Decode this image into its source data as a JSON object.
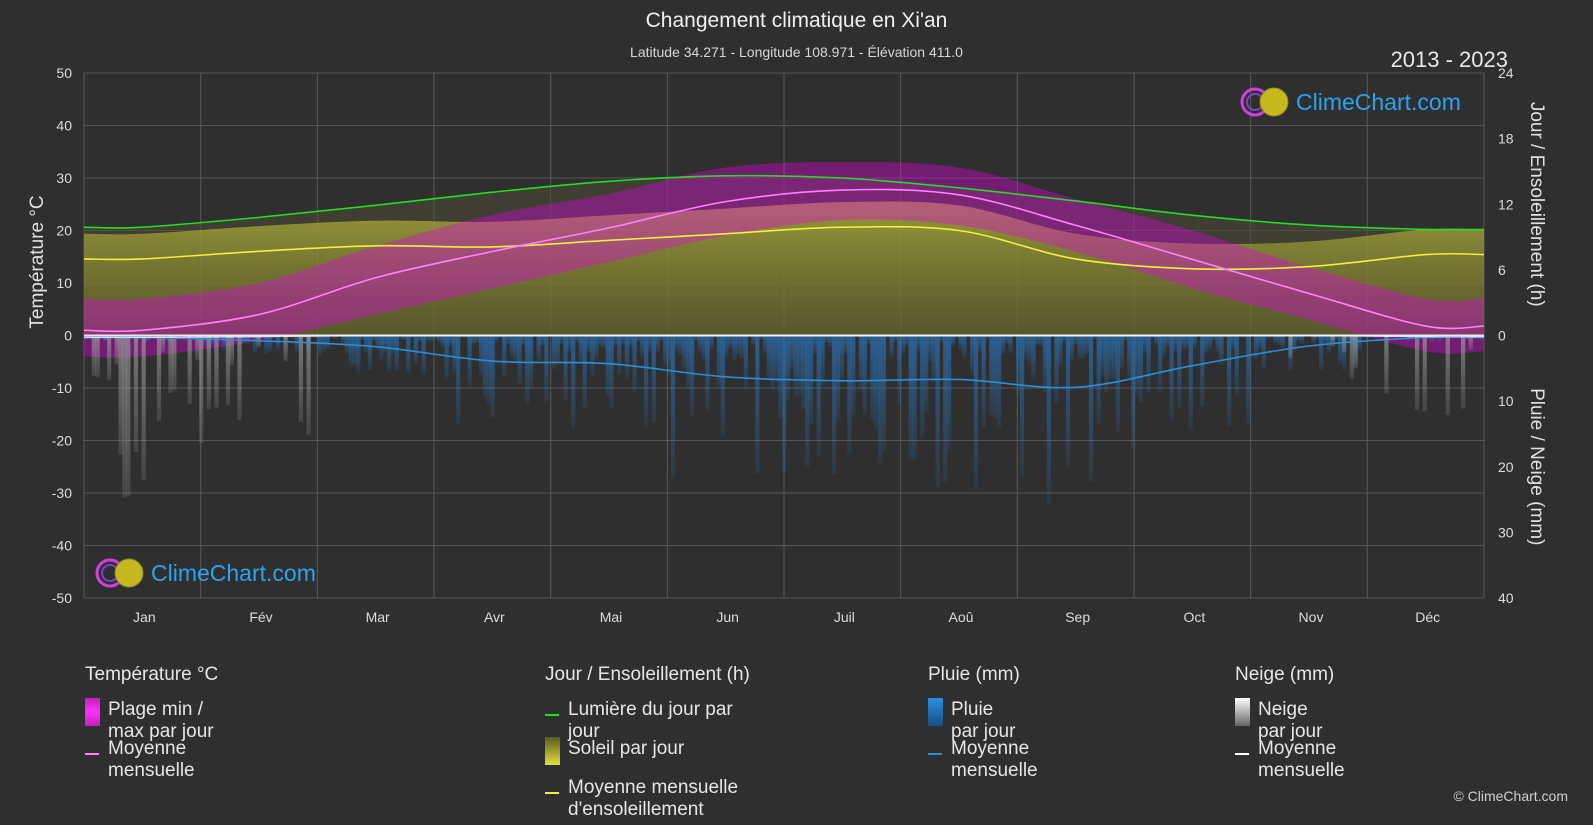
{
  "header": {
    "title": "Changement climatique en Xi'an",
    "subtitle": "Latitude 34.271 - Longitude 108.971 - Élévation 411.0",
    "years": "2013 - 2023"
  },
  "brand": {
    "text": "ClimeChart.com",
    "copyright": "© ClimeChart.com"
  },
  "colors": {
    "background": "#2f2f2f",
    "temp_range": "#e000e0",
    "temp_mean": "#ff80ff",
    "daylight": "#22dd22",
    "sunshine": "#c8c832",
    "sunshine_mean": "#f0f040",
    "rain": "#2a8fd8",
    "rain_mean": "#2a8fd8",
    "snow": "#bbbbbb",
    "snow_mean": "#ffffff",
    "brand": "#2aa3f0"
  },
  "legend": {
    "temperature": {
      "title": "Température °C",
      "range_label": "Plage min / max par jour",
      "mean_label": "Moyenne mensuelle"
    },
    "sun": {
      "title": "Jour / Ensoleillement (h)",
      "daylight_label": "Lumière du jour par jour",
      "sunshine_label": "Soleil par jour",
      "sunshine_mean_label": "Moyenne mensuelle d'ensoleillement"
    },
    "rain": {
      "title": "Pluie (mm)",
      "rain_label": "Pluie par jour",
      "mean_label": "Moyenne mensuelle"
    },
    "snow": {
      "title": "Neige (mm)",
      "snow_label": "Neige par jour",
      "mean_label": "Moyenne mensuelle"
    }
  },
  "chart_data": {
    "type": "line",
    "categories": [
      "Jan",
      "Fév",
      "Mar",
      "Avr",
      "Mai",
      "Jun",
      "Juil",
      "Aoû",
      "Sep",
      "Oct",
      "Nov",
      "Déc"
    ],
    "y_left": {
      "label": "Température °C",
      "ticks": [
        50,
        40,
        30,
        20,
        10,
        0,
        -10,
        -20,
        -30,
        -40,
        -50
      ],
      "range": [
        -50,
        50
      ]
    },
    "y_right_top": {
      "label": "Jour / Ensoleillement (h)",
      "ticks": [
        24,
        18,
        12,
        6,
        0
      ],
      "range": [
        0,
        24
      ]
    },
    "y_right_bottom": {
      "label": "Pluie / Neige (mm)",
      "ticks": [
        0,
        10,
        20,
        30,
        40
      ],
      "range": [
        0,
        40
      ]
    },
    "series": [
      {
        "name": "Moyenne mensuelle",
        "kind": "temperature_mean",
        "values": [
          1.0,
          4.0,
          11.0,
          16.0,
          20.5,
          25.5,
          27.7,
          26.8,
          21.0,
          14.5,
          8.0,
          1.8
        ]
      },
      {
        "name": "Lumière du jour par jour",
        "kind": "daylight_hours",
        "values": [
          9.9,
          10.8,
          11.9,
          13.1,
          14.1,
          14.6,
          14.4,
          13.5,
          12.3,
          11.0,
          10.1,
          9.7
        ]
      },
      {
        "name": "Moyenne mensuelle d'ensoleillement",
        "kind": "sunshine_hours",
        "values": [
          7.0,
          7.7,
          8.2,
          8.1,
          8.7,
          9.3,
          9.9,
          9.6,
          7.0,
          6.1,
          6.3,
          7.4
        ]
      },
      {
        "name": "Moyenne mensuelle",
        "kind": "rain_mean_mm",
        "values": [
          0.3,
          0.8,
          1.7,
          3.9,
          4.3,
          6.3,
          6.9,
          6.7,
          7.9,
          4.6,
          1.6,
          0.3
        ]
      },
      {
        "name": "Moyenne mensuelle",
        "kind": "snow_mean_mm",
        "values": [
          0.3,
          0.2,
          0.0,
          0.0,
          0.0,
          0.0,
          0.0,
          0.0,
          0.0,
          0.0,
          0.0,
          0.2
        ]
      }
    ],
    "temp_daily_range_approx": {
      "min": [
        -4,
        -1,
        4,
        9,
        14,
        19,
        22,
        21,
        16,
        9,
        3,
        -3
      ],
      "max": [
        7,
        10,
        17,
        23,
        27,
        32,
        33,
        32,
        26,
        20,
        13,
        7
      ]
    },
    "grid": true
  }
}
